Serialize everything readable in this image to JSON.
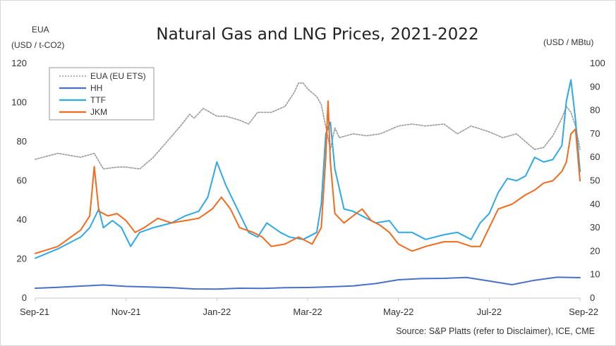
{
  "chart_data": {
    "type": "line",
    "title": "Natural Gas and LNG Prices, 2021-2022",
    "y_left_label_line1": "EUA",
    "y_left_label_line2": "(USD / t-CO2)",
    "y_right_label": "(USD / MBtu)",
    "source": "Source: S&P Platts (refer to Disclaimer), ICE, CME",
    "x_range": [
      0,
      12
    ],
    "x_ticks": [
      {
        "pos": 0,
        "label": "Sep-21"
      },
      {
        "pos": 2,
        "label": "Nov-21"
      },
      {
        "pos": 4,
        "label": "Jan-22"
      },
      {
        "pos": 6,
        "label": "Mar-22"
      },
      {
        "pos": 8,
        "label": "May-22"
      },
      {
        "pos": 10,
        "label": "Jul-22"
      },
      {
        "pos": 12,
        "label": "Sep-22"
      }
    ],
    "y_left": {
      "min": 0,
      "max": 120,
      "ticks": [
        0,
        20,
        40,
        60,
        80,
        100,
        120
      ]
    },
    "y_right": {
      "min": 0,
      "max": 100,
      "ticks": [
        0,
        10,
        20,
        30,
        40,
        50,
        60,
        70,
        80,
        90,
        100
      ]
    },
    "legend_position": "top-left",
    "grid": false,
    "series": [
      {
        "name": "EUA (EU ETS)",
        "axis": "left",
        "color": "#999999",
        "style": "dotted",
        "points": [
          [
            0,
            71
          ],
          [
            0.5,
            74
          ],
          [
            1,
            72
          ],
          [
            1.3,
            74
          ],
          [
            1.5,
            66
          ],
          [
            1.8,
            67
          ],
          [
            2,
            67
          ],
          [
            2.3,
            66
          ],
          [
            2.6,
            72
          ],
          [
            2.9,
            80
          ],
          [
            3.2,
            88
          ],
          [
            3.4,
            94
          ],
          [
            3.5,
            92
          ],
          [
            3.7,
            97
          ],
          [
            4,
            93
          ],
          [
            4.2,
            93
          ],
          [
            4.5,
            91
          ],
          [
            4.7,
            89
          ],
          [
            4.9,
            95
          ],
          [
            5.2,
            95
          ],
          [
            5.5,
            98
          ],
          [
            5.7,
            105
          ],
          [
            5.8,
            110
          ],
          [
            5.9,
            110
          ],
          [
            6,
            107
          ],
          [
            6.2,
            103
          ],
          [
            6.3,
            99
          ],
          [
            6.5,
            76
          ],
          [
            6.6,
            87
          ],
          [
            6.7,
            82
          ],
          [
            7,
            84
          ],
          [
            7.3,
            83
          ],
          [
            7.6,
            84
          ],
          [
            8,
            88
          ],
          [
            8.3,
            89
          ],
          [
            8.6,
            88
          ],
          [
            9,
            89
          ],
          [
            9.3,
            84
          ],
          [
            9.6,
            88
          ],
          [
            10,
            85
          ],
          [
            10.3,
            82
          ],
          [
            10.6,
            84
          ],
          [
            10.8,
            80
          ],
          [
            11,
            76
          ],
          [
            11.2,
            77
          ],
          [
            11.4,
            83
          ],
          [
            11.6,
            92
          ],
          [
            11.7,
            98
          ],
          [
            11.8,
            95
          ],
          [
            11.9,
            88
          ],
          [
            12,
            76
          ]
        ]
      },
      {
        "name": "HH",
        "axis": "right",
        "color": "#4a6fcb",
        "style": "solid",
        "points": [
          [
            0,
            4.2
          ],
          [
            0.5,
            4.6
          ],
          [
            1,
            5.1
          ],
          [
            1.5,
            5.6
          ],
          [
            2,
            5.0
          ],
          [
            2.5,
            4.7
          ],
          [
            3,
            4.4
          ],
          [
            3.5,
            3.9
          ],
          [
            4,
            3.8
          ],
          [
            4.5,
            4.2
          ],
          [
            5,
            4.1
          ],
          [
            5.5,
            4.4
          ],
          [
            6,
            4.5
          ],
          [
            6.5,
            4.8
          ],
          [
            7,
            5.2
          ],
          [
            7.5,
            6.2
          ],
          [
            8,
            7.8
          ],
          [
            8.5,
            8.3
          ],
          [
            9,
            8.4
          ],
          [
            9.5,
            8.8
          ],
          [
            10,
            7.3
          ],
          [
            10.5,
            5.7
          ],
          [
            11,
            7.6
          ],
          [
            11.5,
            8.9
          ],
          [
            12,
            8.7
          ]
        ]
      },
      {
        "name": "TTF",
        "axis": "right",
        "color": "#2fa8e6",
        "style": "solid",
        "points": [
          [
            0,
            17
          ],
          [
            0.5,
            21
          ],
          [
            1,
            26
          ],
          [
            1.2,
            30
          ],
          [
            1.4,
            38
          ],
          [
            1.5,
            30
          ],
          [
            1.7,
            33
          ],
          [
            1.9,
            30
          ],
          [
            2.1,
            22
          ],
          [
            2.3,
            28
          ],
          [
            2.6,
            30
          ],
          [
            3,
            32
          ],
          [
            3.3,
            35
          ],
          [
            3.6,
            37
          ],
          [
            3.8,
            43
          ],
          [
            4,
            58
          ],
          [
            4.2,
            48
          ],
          [
            4.4,
            40
          ],
          [
            4.7,
            28
          ],
          [
            4.9,
            26
          ],
          [
            5.1,
            32
          ],
          [
            5.4,
            28
          ],
          [
            5.6,
            26
          ],
          [
            5.9,
            25
          ],
          [
            6.2,
            28
          ],
          [
            6.3,
            40
          ],
          [
            6.4,
            70
          ],
          [
            6.5,
            75
          ],
          [
            6.6,
            55
          ],
          [
            6.8,
            38
          ],
          [
            7,
            37
          ],
          [
            7.3,
            34
          ],
          [
            7.5,
            32
          ],
          [
            7.8,
            33
          ],
          [
            8,
            28
          ],
          [
            8.3,
            28
          ],
          [
            8.6,
            25
          ],
          [
            9,
            27
          ],
          [
            9.3,
            28
          ],
          [
            9.6,
            25
          ],
          [
            9.8,
            32
          ],
          [
            10,
            36
          ],
          [
            10.2,
            45
          ],
          [
            10.4,
            51
          ],
          [
            10.6,
            50
          ],
          [
            10.8,
            52
          ],
          [
            11,
            60
          ],
          [
            11.2,
            58
          ],
          [
            11.4,
            59
          ],
          [
            11.6,
            65
          ],
          [
            11.7,
            84
          ],
          [
            11.8,
            93
          ],
          [
            11.9,
            76
          ],
          [
            12,
            54
          ]
        ]
      },
      {
        "name": "JKM",
        "axis": "right",
        "color": "#f26b1d",
        "style": "solid",
        "points": [
          [
            0,
            19
          ],
          [
            0.5,
            22
          ],
          [
            1,
            29
          ],
          [
            1.2,
            35
          ],
          [
            1.3,
            56
          ],
          [
            1.4,
            37
          ],
          [
            1.6,
            35
          ],
          [
            1.8,
            36
          ],
          [
            2,
            33
          ],
          [
            2.2,
            28
          ],
          [
            2.4,
            30
          ],
          [
            2.7,
            34
          ],
          [
            3,
            32
          ],
          [
            3.3,
            33
          ],
          [
            3.6,
            34
          ],
          [
            3.9,
            38
          ],
          [
            4.1,
            43
          ],
          [
            4.3,
            38
          ],
          [
            4.5,
            30
          ],
          [
            4.8,
            28
          ],
          [
            5,
            26
          ],
          [
            5.2,
            22
          ],
          [
            5.5,
            23
          ],
          [
            5.8,
            26
          ],
          [
            6.1,
            23
          ],
          [
            6.3,
            30
          ],
          [
            6.4,
            60
          ],
          [
            6.45,
            84
          ],
          [
            6.5,
            58
          ],
          [
            6.6,
            36
          ],
          [
            6.8,
            32
          ],
          [
            7,
            35
          ],
          [
            7.2,
            38
          ],
          [
            7.4,
            33
          ],
          [
            7.6,
            31
          ],
          [
            7.8,
            28
          ],
          [
            8,
            23
          ],
          [
            8.3,
            20
          ],
          [
            8.6,
            22
          ],
          [
            9,
            24
          ],
          [
            9.3,
            24
          ],
          [
            9.6,
            22
          ],
          [
            9.8,
            22
          ],
          [
            10,
            30
          ],
          [
            10.2,
            38
          ],
          [
            10.5,
            40
          ],
          [
            10.8,
            44
          ],
          [
            11,
            46
          ],
          [
            11.2,
            49
          ],
          [
            11.4,
            50
          ],
          [
            11.6,
            54
          ],
          [
            11.7,
            58
          ],
          [
            11.8,
            70
          ],
          [
            11.9,
            72
          ],
          [
            12,
            50
          ]
        ]
      }
    ]
  }
}
